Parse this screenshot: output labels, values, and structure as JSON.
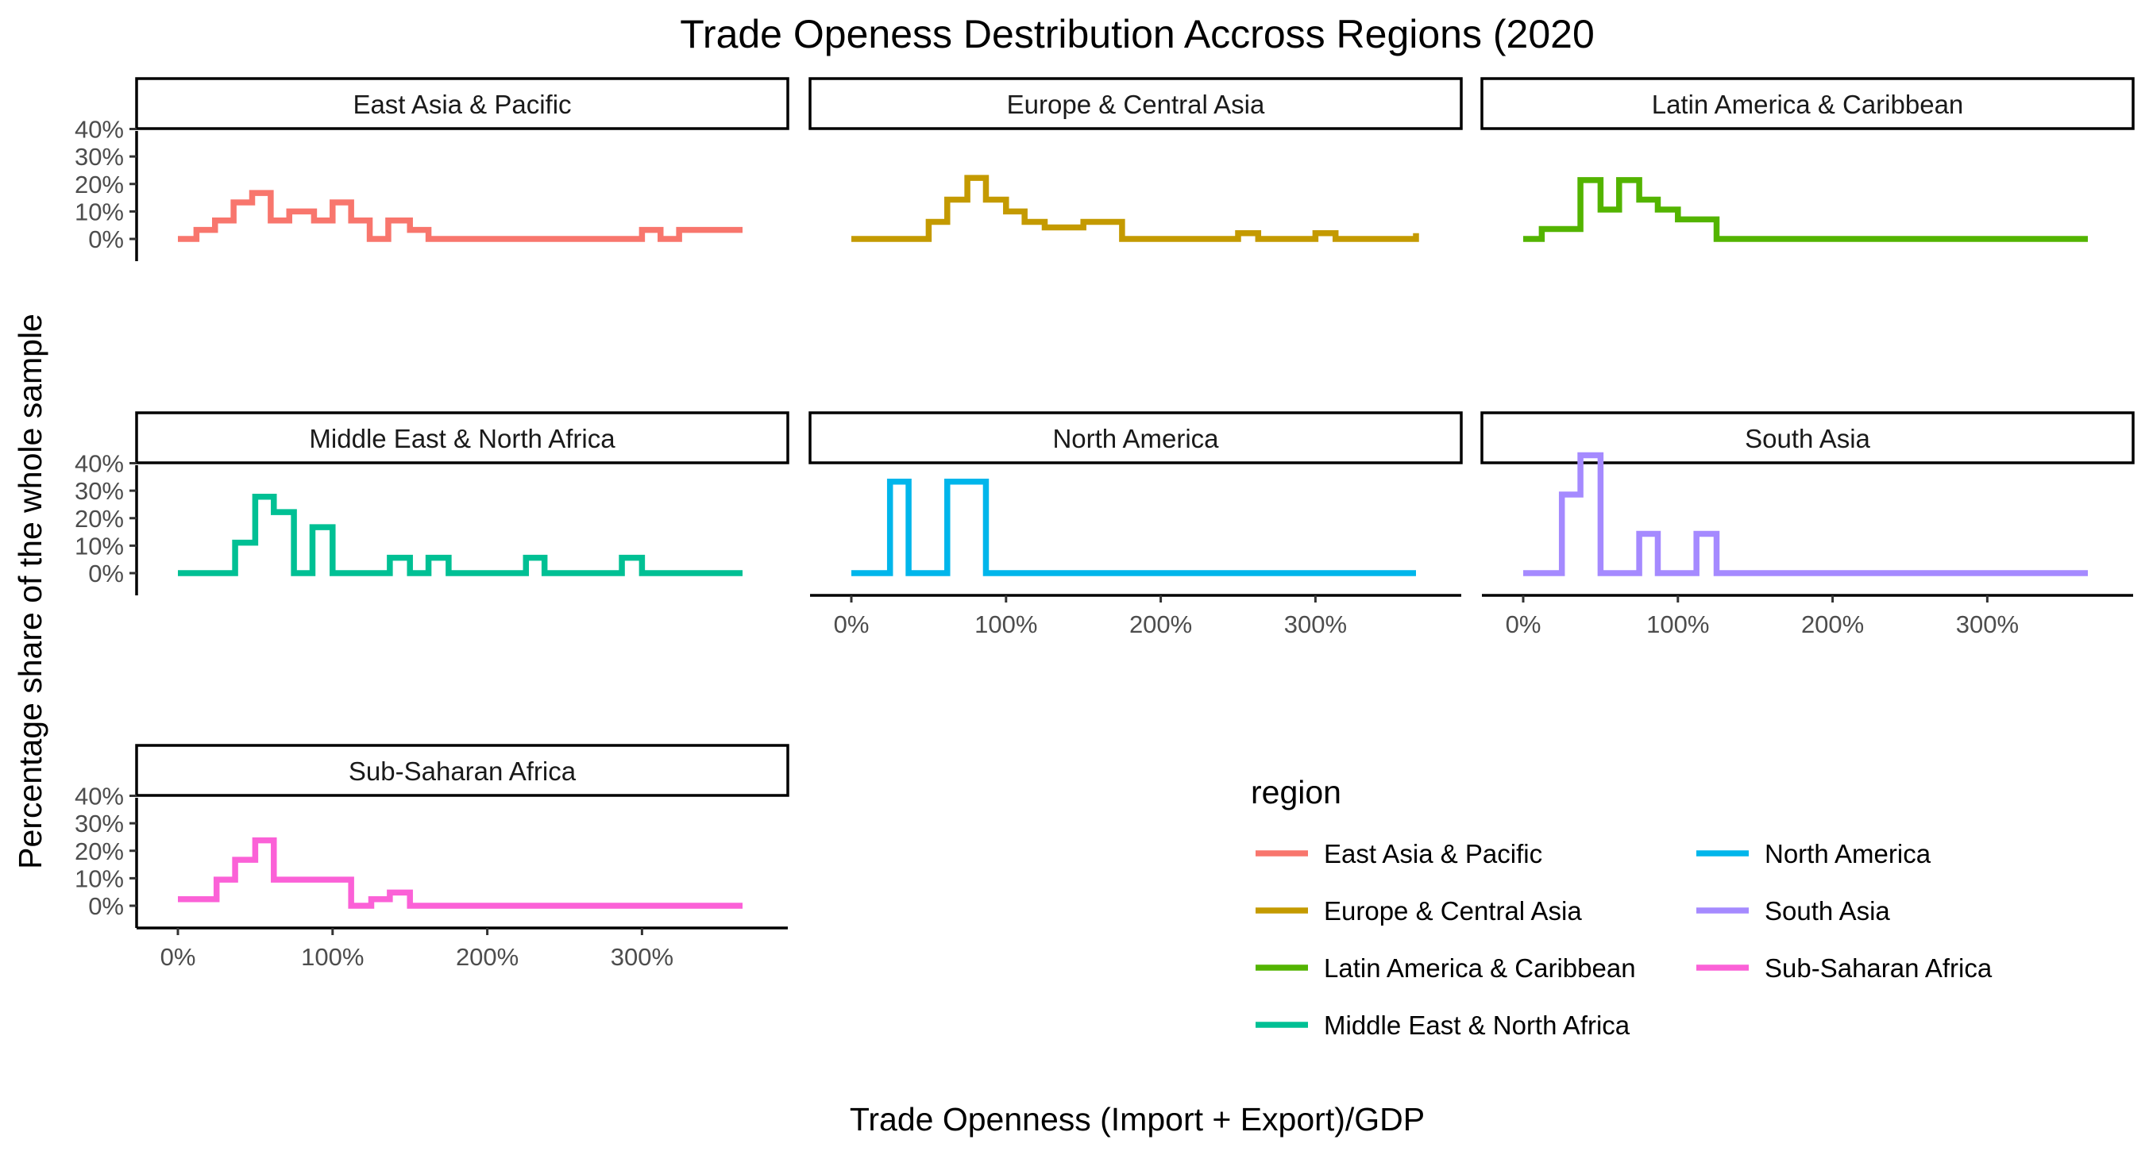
{
  "chart_data": {
    "type": "line",
    "subtype": "step-frequency-polygon (faceted)",
    "title": "Trade Openess Destribution Accross Regions (2020",
    "xlabel": "Trade Openness (Import + Export)/GDP",
    "ylabel": "Percentage share of the whole sample",
    "xlim": [
      0,
      3.65
    ],
    "ylim": [
      0,
      0.43
    ],
    "x_ticks": [
      0,
      1,
      2,
      3
    ],
    "x_tick_labels": [
      "0%",
      "100%",
      "200%",
      "300%"
    ],
    "y_ticks": [
      0,
      0.1,
      0.2,
      0.3,
      0.4
    ],
    "y_tick_labels": [
      "0%",
      "10%",
      "20%",
      "30%",
      "40%"
    ],
    "legend": {
      "title": "region",
      "position": "bottom-right",
      "columns": 2
    },
    "grid": false,
    "series": [
      {
        "name": "East Asia & Pacific",
        "color": "#F8766D",
        "x": [
          0,
          0.12,
          0.24,
          0.36,
          0.48,
          0.6,
          0.72,
          0.88,
          1.0,
          1.12,
          1.24,
          1.36,
          1.5,
          1.62,
          1.76,
          1.88,
          2.0,
          3.0,
          3.12,
          3.24,
          3.36,
          3.65
        ],
        "values": [
          0,
          0.033,
          0.067,
          0.133,
          0.167,
          0.067,
          0.1,
          0.067,
          0.133,
          0.067,
          0,
          0.067,
          0.033,
          0,
          0,
          0,
          0,
          0.033,
          0,
          0.033,
          0.033,
          0.033
        ]
      },
      {
        "name": "Europe & Central Asia",
        "color": "#C49A00",
        "x": [
          0,
          0.25,
          0.5,
          0.62,
          0.75,
          0.87,
          1.0,
          1.12,
          1.25,
          1.5,
          1.75,
          2.0,
          2.25,
          2.5,
          2.63,
          2.88,
          3.0,
          3.13,
          3.38,
          3.65
        ],
        "values": [
          0,
          0,
          0.062,
          0.143,
          0.222,
          0.143,
          0.1,
          0.062,
          0.042,
          0.062,
          0,
          0,
          0,
          0.021,
          0,
          0,
          0.021,
          0,
          0,
          0.021
        ]
      },
      {
        "name": "Latin America & Caribbean",
        "color": "#53B400",
        "x": [
          0,
          0.12,
          0.37,
          0.5,
          0.62,
          0.75,
          0.87,
          1.0,
          1.12,
          1.25,
          2.0,
          3.0,
          3.65
        ],
        "values": [
          0,
          0.036,
          0.214,
          0.107,
          0.214,
          0.143,
          0.107,
          0.071,
          0.071,
          0,
          0,
          0,
          0
        ]
      },
      {
        "name": "Middle East & North Africa",
        "color": "#00C094",
        "x": [
          0,
          0.37,
          0.5,
          0.62,
          0.75,
          0.87,
          1.0,
          1.37,
          1.5,
          1.62,
          1.75,
          2.25,
          2.37,
          2.87,
          3.0,
          3.65
        ],
        "values": [
          0,
          0.111,
          0.278,
          0.222,
          0,
          0.167,
          0,
          0.056,
          0,
          0.056,
          0,
          0.056,
          0,
          0.056,
          0,
          0
        ]
      },
      {
        "name": "North America",
        "color": "#00B6EB",
        "x": [
          0,
          0.25,
          0.37,
          0.62,
          0.75,
          0.87,
          1.0,
          2.0,
          3.0,
          3.65
        ],
        "values": [
          0,
          0.333,
          0,
          0.333,
          0.333,
          0,
          0,
          0,
          0,
          0
        ]
      },
      {
        "name": "South Asia",
        "color": "#A58AFF",
        "x": [
          0,
          0.25,
          0.37,
          0.5,
          0.62,
          0.75,
          0.87,
          1.0,
          1.12,
          1.25,
          2.0,
          3.0,
          3.65
        ],
        "values": [
          0,
          0.286,
          0.429,
          0,
          0,
          0.143,
          0,
          0,
          0.143,
          0,
          0,
          0,
          0
        ]
      },
      {
        "name": "Sub-Saharan Africa",
        "color": "#FB61D7",
        "x": [
          0,
          0.25,
          0.37,
          0.5,
          0.62,
          0.87,
          1.0,
          1.12,
          1.25,
          1.37,
          1.5,
          2.0,
          3.0,
          3.65
        ],
        "values": [
          0.024,
          0.095,
          0.167,
          0.238,
          0.095,
          0.095,
          0.095,
          0,
          0.024,
          0.048,
          0,
          0,
          0,
          0
        ]
      }
    ]
  }
}
